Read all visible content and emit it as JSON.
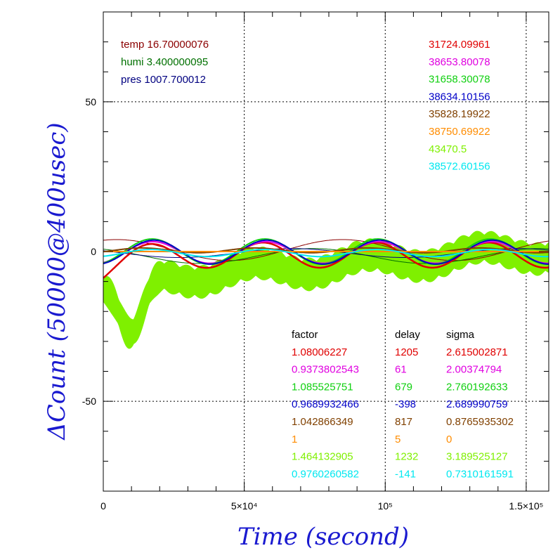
{
  "chart_data": {
    "type": "line",
    "xlabel": "Time (second)",
    "ylabel": "ΔCount (50000@400usec)",
    "xlim": [
      0,
      158000
    ],
    "ylim": [
      -80,
      80
    ],
    "grid": true,
    "x_ticks": [
      {
        "value": 0,
        "label": "0"
      },
      {
        "value": 50000,
        "label": "5×10⁴"
      },
      {
        "value": 100000,
        "label": "10⁵"
      },
      {
        "value": 150000,
        "label": "1.5×10⁵"
      }
    ],
    "y_ticks": [
      {
        "value": -50,
        "label": "-50"
      },
      {
        "value": 0,
        "label": "0"
      },
      {
        "value": 50,
        "label": "50"
      }
    ],
    "env_labels": [
      {
        "text": "temp 16.70000076",
        "color": "#8b0000"
      },
      {
        "text": "humi 3.400000095",
        "color": "#007000"
      },
      {
        "text": "pres 1007.700012",
        "color": "#000080"
      }
    ],
    "table_headers": {
      "factor": "factor",
      "delay": "delay",
      "sigma": "sigma"
    },
    "series": [
      {
        "mean": "31724.09961",
        "factor": "1.08006227",
        "delay": "1205",
        "sigma": "2.615002871",
        "color": "#e00000",
        "amp": 4.2,
        "phase": 0.15,
        "base": -1.2
      },
      {
        "mean": "38653.80078",
        "factor": "0.9373802543",
        "delay": "61",
        "sigma": "2.00374794",
        "color": "#e000e0",
        "amp": 3.6,
        "phase": 0.0,
        "base": -0.3
      },
      {
        "mean": "31658.30078",
        "factor": "1.085525751",
        "delay": "679",
        "sigma": "2.760192633",
        "color": "#10d010",
        "amp": 4.2,
        "phase": 0.05,
        "base": 0.0
      },
      {
        "mean": "38634.10156",
        "factor": "0.9689932466",
        "delay": "-398",
        "sigma": "2.689990759",
        "color": "#0000c8",
        "amp": 4.0,
        "phase": -0.05,
        "base": -0.2
      },
      {
        "mean": "35828.19922",
        "factor": "1.042866349",
        "delay": "817",
        "sigma": "0.8765935302",
        "color": "#804000",
        "amp": 0.8,
        "phase": 0.6,
        "base": 0.4
      },
      {
        "mean": "38750.69922",
        "factor": "1",
        "delay": "5",
        "sigma": "0",
        "color": "#ff8c00",
        "amp": 0.0,
        "phase": 0.0,
        "base": 0.0
      },
      {
        "mean": "43470.5",
        "factor": "1.464132905",
        "delay": "1232",
        "sigma": "3.189525127",
        "color": "#7ff000",
        "amp": 2.5,
        "phase": 0.0,
        "base": -12
      },
      {
        "mean": "38572.60156",
        "factor": "0.9760260582",
        "delay": "-141",
        "sigma": "0.7310161591",
        "color": "#00e8f0",
        "amp": 1.2,
        "phase": 0.1,
        "base": -0.5
      }
    ],
    "thin_lines": [
      {
        "color": "#8b0000",
        "amp": 3.5,
        "phase": 1.2,
        "base": 0.5
      },
      {
        "color": "#007000",
        "amp": 2.5,
        "phase": 2.0,
        "base": -1.5
      },
      {
        "color": "#000080",
        "amp": 1.5,
        "phase": 2.6,
        "base": -0.5
      }
    ],
    "period": 40000
  }
}
